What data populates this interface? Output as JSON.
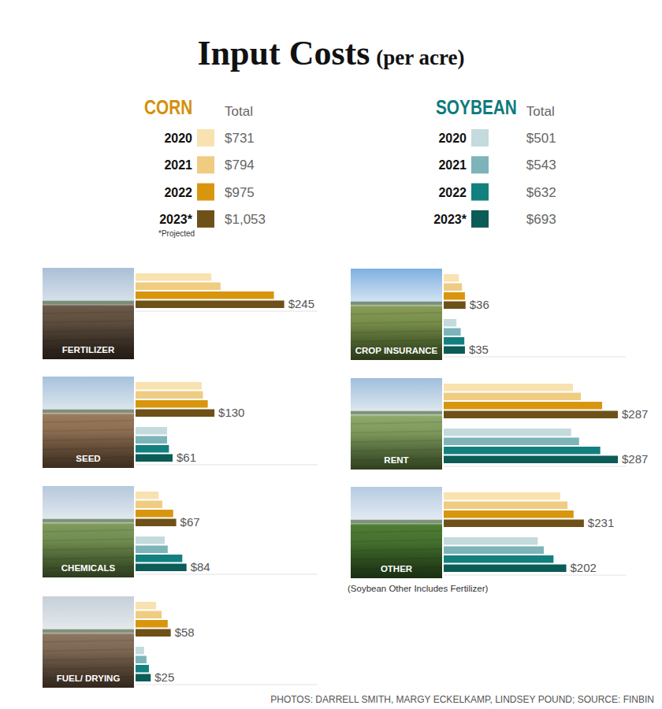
{
  "title": "Input Costs",
  "subtitle": "(per acre)",
  "key": [
    {
      "name": "CORN",
      "color": "#d4900a",
      "total_heading": "Total",
      "years": [
        "2020",
        "2021",
        "2022",
        "2023*"
      ],
      "colors": [
        "#f8e2b0",
        "#efcc82",
        "#d8960f",
        "#6e5118"
      ],
      "totals": [
        "$731",
        "$794",
        "$975",
        "$1,053"
      ]
    },
    {
      "name": "SOYBEAN",
      "color": "#0d7b7b",
      "total_heading": "Total",
      "years": [
        "2020",
        "2021",
        "2022",
        "2023*"
      ],
      "colors": [
        "#c4dadd",
        "#7cb4b9",
        "#138080",
        "#0b5c57"
      ],
      "totals": [
        "$501",
        "$543",
        "$632",
        "$693"
      ]
    }
  ],
  "footnote": "*Projected",
  "chart_data": [
    {
      "type": "bar",
      "orientation": "horizontal",
      "title": "FERTILIZER",
      "categories": [
        null,
        null,
        null,
        null
      ],
      "xlim": [
        0,
        300
      ],
      "tick_labels": false,
      "data_labels": true,
      "series": [
        {
          "colors": [
            "#f8e2b0",
            "#efcc82",
            "#d8960f",
            "#6e5118"
          ],
          "values": [
            125,
            140,
            228,
            245
          ],
          "value_labels": [
            null,
            null,
            null,
            "$245"
          ]
        }
      ]
    },
    {
      "type": "bar",
      "orientation": "horizontal",
      "title": "SEED",
      "categories": [
        null,
        null,
        null,
        null
      ],
      "xlim": [
        0,
        300
      ],
      "tick_labels": false,
      "data_labels": true,
      "series": [
        {
          "colors": [
            "#f8e2b0",
            "#efcc82",
            "#d8960f",
            "#6e5118"
          ],
          "values": [
            109,
            111,
            119,
            130
          ],
          "value_labels": [
            null,
            null,
            null,
            "$130"
          ]
        },
        {
          "colors": [
            "#c4dadd",
            "#7cb4b9",
            "#138080",
            "#0b5c57"
          ],
          "values": [
            52,
            52,
            55,
            61
          ],
          "value_labels": [
            null,
            null,
            null,
            "$61"
          ]
        }
      ]
    },
    {
      "type": "bar",
      "orientation": "horizontal",
      "title": "CHEMICALS",
      "categories": [
        null,
        null,
        null,
        null
      ],
      "xlim": [
        0,
        300
      ],
      "tick_labels": false,
      "data_labels": true,
      "series": [
        {
          "colors": [
            "#f8e2b0",
            "#efcc82",
            "#d8960f",
            "#6e5118"
          ],
          "values": [
            38,
            44,
            62,
            67
          ],
          "value_labels": [
            null,
            null,
            null,
            "$67"
          ]
        },
        {
          "colors": [
            "#c4dadd",
            "#7cb4b9",
            "#138080",
            "#0b5c57"
          ],
          "values": [
            48,
            53,
            77,
            84
          ],
          "value_labels": [
            null,
            null,
            null,
            "$84"
          ]
        }
      ]
    },
    {
      "type": "bar",
      "orientation": "horizontal",
      "title": "FUEL/ DRYING",
      "categories": [
        null,
        null,
        null,
        null
      ],
      "xlim": [
        0,
        300
      ],
      "tick_labels": false,
      "data_labels": true,
      "series": [
        {
          "colors": [
            "#f8e2b0",
            "#efcc82",
            "#d8960f",
            "#6e5118"
          ],
          "values": [
            34,
            43,
            53,
            58
          ],
          "value_labels": [
            null,
            null,
            null,
            "$58"
          ]
        },
        {
          "colors": [
            "#c4dadd",
            "#7cb4b9",
            "#138080",
            "#0b5c57"
          ],
          "values": [
            14,
            18,
            22,
            25
          ],
          "value_labels": [
            null,
            null,
            null,
            "$25"
          ]
        }
      ]
    },
    {
      "type": "bar",
      "orientation": "horizontal",
      "title": "CROP INSURANCE",
      "categories": [
        null,
        null,
        null,
        null
      ],
      "xlim": [
        0,
        300
      ],
      "tick_labels": false,
      "data_labels": true,
      "series": [
        {
          "colors": [
            "#f8e2b0",
            "#efcc82",
            "#d8960f",
            "#6e5118"
          ],
          "values": [
            25,
            30,
            35,
            36
          ],
          "value_labels": [
            null,
            null,
            null,
            "$36"
          ]
        },
        {
          "colors": [
            "#c4dadd",
            "#7cb4b9",
            "#138080",
            "#0b5c57"
          ],
          "values": [
            21,
            28,
            34,
            35
          ],
          "value_labels": [
            null,
            null,
            null,
            "$35"
          ]
        }
      ]
    },
    {
      "type": "bar",
      "orientation": "horizontal",
      "title": "RENT",
      "categories": [
        null,
        null,
        null,
        null
      ],
      "xlim": [
        0,
        300
      ],
      "tick_labels": false,
      "data_labels": true,
      "series": [
        {
          "colors": [
            "#f8e2b0",
            "#efcc82",
            "#d8960f",
            "#6e5118"
          ],
          "values": [
            213,
            226,
            261,
            287
          ],
          "value_labels": [
            null,
            null,
            null,
            "$287"
          ]
        },
        {
          "colors": [
            "#c4dadd",
            "#7cb4b9",
            "#138080",
            "#0b5c57"
          ],
          "values": [
            210,
            223,
            258,
            287
          ],
          "value_labels": [
            null,
            null,
            null,
            "$287"
          ]
        }
      ]
    },
    {
      "type": "bar",
      "orientation": "horizontal",
      "title": "OTHER",
      "categories": [
        null,
        null,
        null,
        null
      ],
      "xlim": [
        0,
        300
      ],
      "tick_labels": false,
      "data_labels": true,
      "series": [
        {
          "colors": [
            "#f8e2b0",
            "#efcc82",
            "#d8960f",
            "#6e5118"
          ],
          "values": [
            192,
            204,
            214,
            231
          ],
          "value_labels": [
            null,
            null,
            null,
            "$231"
          ]
        },
        {
          "colors": [
            "#c4dadd",
            "#7cb4b9",
            "#138080",
            "#0b5c57"
          ],
          "values": [
            155,
            165,
            181,
            202
          ],
          "value_labels": [
            null,
            null,
            null,
            "$202"
          ]
        }
      ]
    }
  ],
  "note": "(Soybean Other Includes Fertilizer)",
  "credit": "PHOTOS: DARRELL SMITH, MARGY ECKELKAMP, LINDSEY POUND; SOURCE: FINBIN"
}
